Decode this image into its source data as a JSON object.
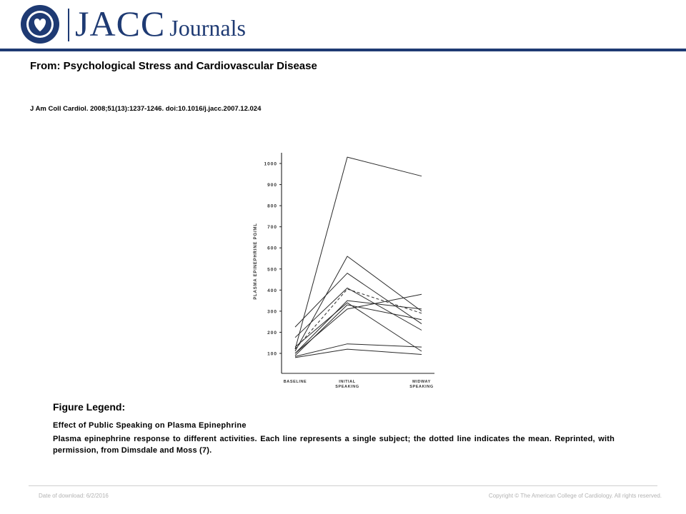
{
  "header": {
    "logo_main": "JACC",
    "logo_sub": "Journals",
    "seal_text": "AMERICAN COLLEGE OF CARDIOLOGY",
    "brand_color": "#1e3a73"
  },
  "article": {
    "title": "From: Psychological Stress and Cardiovascular Disease",
    "citation": "J Am Coll Cardiol. 2008;51(13):1237-1246. doi:10.1016/j.jacc.2007.12.024"
  },
  "chart_data": {
    "type": "line",
    "title": "",
    "xlabel": "",
    "ylabel": "PLASMA EPINEPHRINE PG/ML",
    "categories": [
      "BASELINE",
      "INITIAL SPEAKING",
      "MIDWAY SPEAKING"
    ],
    "yticks": [
      100,
      200,
      300,
      400,
      500,
      600,
      700,
      800,
      900,
      1000
    ],
    "ylim": [
      60,
      1040
    ],
    "grid": false,
    "series": [
      {
        "values": [
          120,
          1030,
          940
        ],
        "style": "solid"
      },
      {
        "values": [
          110,
          560,
          300
        ],
        "style": "solid"
      },
      {
        "values": [
          225,
          480,
          240
        ],
        "style": "solid"
      },
      {
        "values": [
          175,
          410,
          210
        ],
        "style": "solid"
      },
      {
        "values": [
          130,
          340,
          110
        ],
        "style": "solid"
      },
      {
        "values": [
          100,
          310,
          380
        ],
        "style": "solid"
      },
      {
        "values": [
          100,
          350,
          310
        ],
        "style": "solid"
      },
      {
        "values": [
          90,
          330,
          260
        ],
        "style": "solid"
      },
      {
        "values": [
          85,
          145,
          130
        ],
        "style": "solid"
      },
      {
        "values": [
          80,
          120,
          95
        ],
        "style": "solid"
      },
      {
        "values": [
          120,
          405,
          290
        ],
        "style": "dashed"
      }
    ]
  },
  "legend": {
    "heading": "Figure Legend:",
    "title": "Effect of Public Speaking on Plasma Epinephrine",
    "description": "Plasma epinephrine response to different activities. Each line represents a single subject; the dotted line indicates the mean. Reprinted, with permission, from Dimsdale and Moss (7)."
  },
  "footer": {
    "download_date": "Date of download: 6/2/2016",
    "copyright": "Copyright © The American College of Cardiology. All rights reserved."
  }
}
